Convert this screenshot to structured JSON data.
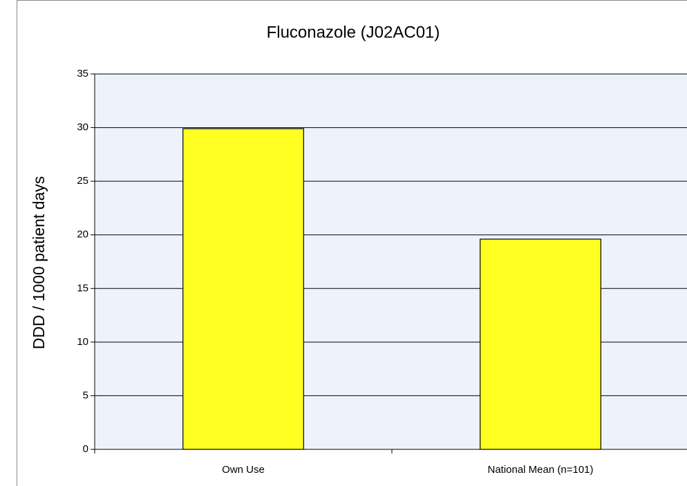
{
  "chart_data": {
    "type": "bar",
    "title": "Fluconazole   (J02AC01)",
    "y_label": "DDD / 1000 patient days",
    "categories": [
      "Own Use",
      "National Mean (n=101)"
    ],
    "values": [
      29.9,
      19.6
    ],
    "color": "#ffff22",
    "ylim": [
      0,
      35
    ],
    "yticks": [
      0,
      5,
      10,
      15,
      20,
      25,
      30,
      35
    ],
    "grid": true
  }
}
